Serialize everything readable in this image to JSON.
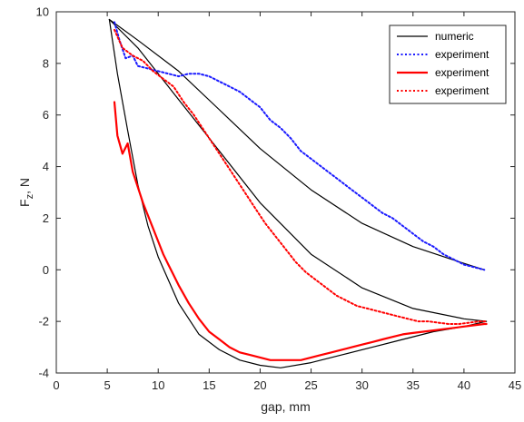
{
  "chart_data": {
    "type": "line",
    "xlabel": "gap, mm",
    "ylabel_main": "F",
    "ylabel_sub": "z",
    "ylabel_rest": ", N",
    "xlim": [
      0,
      45
    ],
    "ylim": [
      -4,
      10
    ],
    "x_ticks": [
      0,
      5,
      10,
      15,
      20,
      25,
      30,
      35,
      40,
      45
    ],
    "y_ticks": [
      -4,
      -2,
      0,
      2,
      4,
      6,
      8,
      10
    ],
    "grid": false,
    "legend_position": "top-right",
    "series": [
      {
        "name": "numeric",
        "color": "#000000",
        "style": "solid",
        "points": [
          [
            5.2,
            9.7
          ],
          [
            8,
            8.9
          ],
          [
            12,
            7.7
          ],
          [
            16,
            6.2
          ],
          [
            20,
            4.7
          ],
          [
            25,
            3.1
          ],
          [
            30,
            1.8
          ],
          [
            35,
            0.9
          ],
          [
            40,
            0.25
          ],
          [
            42,
            0.0
          ]
        ]
      },
      {
        "name": "numeric",
        "color": "#000000",
        "style": "solid",
        "points": [
          [
            5.2,
            9.7
          ],
          [
            8,
            8.6
          ],
          [
            12,
            6.6
          ],
          [
            16,
            4.6
          ],
          [
            20,
            2.6
          ],
          [
            25,
            0.6
          ],
          [
            30,
            -0.7
          ],
          [
            35,
            -1.5
          ],
          [
            40,
            -1.9
          ],
          [
            42.2,
            -2.0
          ]
        ]
      },
      {
        "name": "numeric",
        "color": "#000000",
        "style": "solid",
        "points": [
          [
            5.2,
            9.7
          ],
          [
            6,
            7.6
          ],
          [
            7,
            5.4
          ],
          [
            8,
            3.3
          ],
          [
            9,
            1.7
          ],
          [
            10,
            0.5
          ],
          [
            12,
            -1.3
          ],
          [
            14,
            -2.5
          ],
          [
            16,
            -3.1
          ],
          [
            18,
            -3.5
          ],
          [
            20,
            -3.7
          ],
          [
            22,
            -3.8
          ],
          [
            25,
            -3.6
          ],
          [
            28,
            -3.3
          ],
          [
            31,
            -3.0
          ],
          [
            34,
            -2.7
          ],
          [
            37,
            -2.4
          ],
          [
            40,
            -2.2
          ],
          [
            42.2,
            -2.0
          ]
        ]
      },
      {
        "name": "experiment",
        "color": "#1a1aff",
        "style": "dotted",
        "points": [
          [
            5.7,
            9.6
          ],
          [
            6.2,
            8.9
          ],
          [
            6.8,
            8.2
          ],
          [
            7.5,
            8.3
          ],
          [
            8,
            7.9
          ],
          [
            9,
            7.8
          ],
          [
            10,
            7.7
          ],
          [
            11,
            7.6
          ],
          [
            12,
            7.5
          ],
          [
            13,
            7.6
          ],
          [
            14,
            7.6
          ],
          [
            15,
            7.5
          ],
          [
            16,
            7.3
          ],
          [
            17,
            7.1
          ],
          [
            18,
            6.9
          ],
          [
            19,
            6.6
          ],
          [
            20,
            6.3
          ],
          [
            21,
            5.8
          ],
          [
            22,
            5.5
          ],
          [
            23,
            5.1
          ],
          [
            24,
            4.6
          ],
          [
            25,
            4.3
          ],
          [
            26,
            4.0
          ],
          [
            27,
            3.7
          ],
          [
            28,
            3.4
          ],
          [
            29,
            3.1
          ],
          [
            30,
            2.8
          ],
          [
            31,
            2.5
          ],
          [
            32,
            2.2
          ],
          [
            33,
            2.0
          ],
          [
            34,
            1.7
          ],
          [
            35,
            1.4
          ],
          [
            36,
            1.1
          ],
          [
            37,
            0.9
          ],
          [
            38,
            0.6
          ],
          [
            39,
            0.4
          ],
          [
            40,
            0.2
          ],
          [
            41,
            0.1
          ],
          [
            42,
            0.0
          ]
        ]
      },
      {
        "name": "experiment",
        "color": "#ff0000",
        "style": "solid",
        "points": [
          [
            5.7,
            6.5
          ],
          [
            6,
            5.2
          ],
          [
            6.5,
            4.5
          ],
          [
            7,
            4.9
          ],
          [
            7.5,
            3.8
          ],
          [
            8,
            3.2
          ],
          [
            8.5,
            2.6
          ],
          [
            9,
            2.1
          ],
          [
            9.5,
            1.6
          ],
          [
            10,
            1.1
          ],
          [
            10.5,
            0.6
          ],
          [
            11,
            0.2
          ],
          [
            11.5,
            -0.2
          ],
          [
            12,
            -0.6
          ],
          [
            13,
            -1.3
          ],
          [
            14,
            -1.9
          ],
          [
            15,
            -2.4
          ],
          [
            16,
            -2.7
          ],
          [
            17,
            -3.0
          ],
          [
            18,
            -3.2
          ],
          [
            19,
            -3.3
          ],
          [
            20,
            -3.4
          ],
          [
            21,
            -3.5
          ],
          [
            22,
            -3.5
          ],
          [
            23,
            -3.5
          ],
          [
            24,
            -3.5
          ],
          [
            25,
            -3.4
          ],
          [
            26,
            -3.3
          ],
          [
            27,
            -3.2
          ],
          [
            28,
            -3.1
          ],
          [
            29,
            -3.0
          ],
          [
            30,
            -2.9
          ],
          [
            31,
            -2.8
          ],
          [
            32,
            -2.7
          ],
          [
            33,
            -2.6
          ],
          [
            34,
            -2.5
          ],
          [
            35,
            -2.45
          ],
          [
            36,
            -2.4
          ],
          [
            37,
            -2.35
          ],
          [
            38,
            -2.3
          ],
          [
            39,
            -2.25
          ],
          [
            40,
            -2.2
          ],
          [
            41,
            -2.15
          ],
          [
            42,
            -2.1
          ],
          [
            42.2,
            -2.1
          ]
        ]
      },
      {
        "name": "experiment",
        "color": "#ff0000",
        "style": "dotted",
        "points": [
          [
            5.7,
            9.3
          ],
          [
            6.5,
            8.6
          ],
          [
            7.5,
            8.3
          ],
          [
            8.5,
            8.1
          ],
          [
            9.5,
            7.7
          ],
          [
            10.5,
            7.4
          ],
          [
            11.5,
            7.1
          ],
          [
            12.5,
            6.5
          ],
          [
            13.5,
            6.0
          ],
          [
            14.5,
            5.4
          ],
          [
            15.5,
            4.8
          ],
          [
            16.5,
            4.2
          ],
          [
            17.5,
            3.6
          ],
          [
            18.5,
            3.0
          ],
          [
            19.5,
            2.4
          ],
          [
            20.5,
            1.8
          ],
          [
            21.5,
            1.3
          ],
          [
            22.5,
            0.8
          ],
          [
            23.5,
            0.3
          ],
          [
            24.5,
            -0.1
          ],
          [
            25.5,
            -0.4
          ],
          [
            26.5,
            -0.7
          ],
          [
            27.5,
            -1.0
          ],
          [
            28.5,
            -1.2
          ],
          [
            29.5,
            -1.4
          ],
          [
            30.5,
            -1.5
          ],
          [
            31.5,
            -1.6
          ],
          [
            32.5,
            -1.7
          ],
          [
            33.5,
            -1.8
          ],
          [
            34.5,
            -1.9
          ],
          [
            35.5,
            -2.0
          ],
          [
            36.5,
            -2.0
          ],
          [
            37.5,
            -2.05
          ],
          [
            38.5,
            -2.1
          ],
          [
            39.5,
            -2.1
          ],
          [
            40.5,
            -2.05
          ],
          [
            41.5,
            -2.0
          ],
          [
            42.2,
            -2.0
          ]
        ]
      }
    ]
  }
}
